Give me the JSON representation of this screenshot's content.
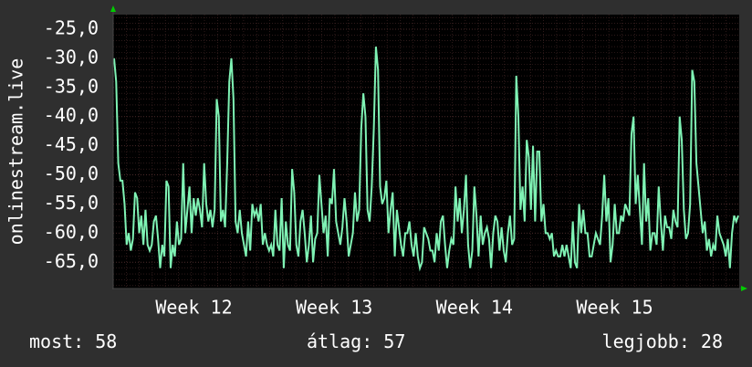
{
  "chart_data": {
    "type": "line",
    "ylabel": "onlinestream.live",
    "y_ticks": [
      -25,
      -30,
      -35,
      -40,
      -45,
      -50,
      -55,
      -60,
      -65
    ],
    "y_tick_labels": [
      "-25,0",
      "-30,0",
      "-35,0",
      "-40,0",
      "-45,0",
      "-50,0",
      "-55,0",
      "-60,0",
      "-65,0"
    ],
    "ylim": [
      -69.5,
      -22.5
    ],
    "x_ticks": [
      {
        "label": "Week 12",
        "pos": 0.129
      },
      {
        "label": "Week 13",
        "pos": 0.353
      },
      {
        "label": "Week 14",
        "pos": 0.577
      },
      {
        "label": "Week 15",
        "pos": 0.801
      }
    ],
    "grid": true,
    "colors": {
      "background": "#2f2f2f",
      "plot": "#000000",
      "line": "#7ff2b4",
      "grid": "#4a2a2a",
      "axis_arrow": "#00cc00"
    },
    "series": [
      {
        "values": [
          -30,
          -34,
          -48,
          -51,
          -51,
          -55,
          -62,
          -60,
          -63,
          -61,
          -53,
          -54,
          -60,
          -57,
          -62,
          -56,
          -62,
          -63,
          -62,
          -58,
          -57,
          -61,
          -66,
          -62,
          -64,
          -51,
          -52,
          -66,
          -62,
          -64,
          -58,
          -62,
          -61,
          -48,
          -60,
          -56,
          -52,
          -60,
          -54,
          -57,
          -54,
          -56,
          -59,
          -48,
          -55,
          -58,
          -56,
          -59,
          -56,
          -37,
          -40,
          -58,
          -56,
          -59,
          -48,
          -34,
          -30,
          -37,
          -58,
          -60,
          -56,
          -60,
          -62,
          -64,
          -58,
          -63,
          -55,
          -57,
          -56,
          -58,
          -55,
          -62,
          -60,
          -62,
          -63,
          -62,
          -64,
          -56,
          -62,
          -63,
          -54,
          -66,
          -58,
          -62,
          -63,
          -49,
          -53,
          -62,
          -64,
          -58,
          -56,
          -60,
          -65,
          -62,
          -57,
          -65,
          -61,
          -60,
          -50,
          -55,
          -60,
          -57,
          -64,
          -54,
          -55,
          -49,
          -58,
          -60,
          -62,
          -59,
          -54,
          -58,
          -64,
          -62,
          -60,
          -53,
          -58,
          -56,
          -42,
          -36,
          -40,
          -56,
          -58,
          -52,
          -42,
          -28,
          -32,
          -52,
          -55,
          -54,
          -51,
          -60,
          -56,
          -53,
          -64,
          -56,
          -59,
          -62,
          -64,
          -60,
          -60,
          -58,
          -62,
          -64,
          -60,
          -64,
          -66,
          -65,
          -59,
          -60,
          -61,
          -63,
          -63,
          -65,
          -60,
          -63,
          -58,
          -57,
          -62,
          -66,
          -63,
          -61,
          -62,
          -52,
          -58,
          -54,
          -60,
          -56,
          -50,
          -62,
          -66,
          -63,
          -52,
          -57,
          -64,
          -57,
          -62,
          -60,
          -59,
          -61,
          -66,
          -60,
          -57,
          -58,
          -63,
          -59,
          -63,
          -65,
          -60,
          -57,
          -62,
          -61,
          -33,
          -40,
          -56,
          -52,
          -58,
          -44,
          -47,
          -56,
          -45,
          -58,
          -46,
          -46,
          -58,
          -55,
          -60,
          -60,
          -61,
          -60,
          -64,
          -63,
          -64,
          -64,
          -62,
          -64,
          -62,
          -64,
          -66,
          -58,
          -65,
          -66,
          -55,
          -60,
          -56,
          -60,
          -60,
          -64,
          -64,
          -62,
          -60,
          -61,
          -62,
          -57,
          -50,
          -58,
          -54,
          -65,
          -62,
          -55,
          -60,
          -60,
          -57,
          -58,
          -55,
          -56,
          -57,
          -43,
          -40,
          -55,
          -50,
          -56,
          -62,
          -48,
          -58,
          -54,
          -63,
          -60,
          -60,
          -62,
          -52,
          -58,
          -63,
          -57,
          -59,
          -59,
          -61,
          -56,
          -58,
          -59,
          -40,
          -44,
          -56,
          -61,
          -60,
          -55,
          -32,
          -34,
          -48,
          -52,
          -56,
          -60,
          -58,
          -63,
          -61,
          -64,
          -62,
          -63,
          -57,
          -60,
          -61,
          -62,
          -64,
          -61,
          -66,
          -60,
          -57,
          -58,
          -57
        ]
      }
    ]
  },
  "stats": {
    "now": "most: 58",
    "avg": "átlag: 57",
    "best": "legjobb: 28"
  }
}
